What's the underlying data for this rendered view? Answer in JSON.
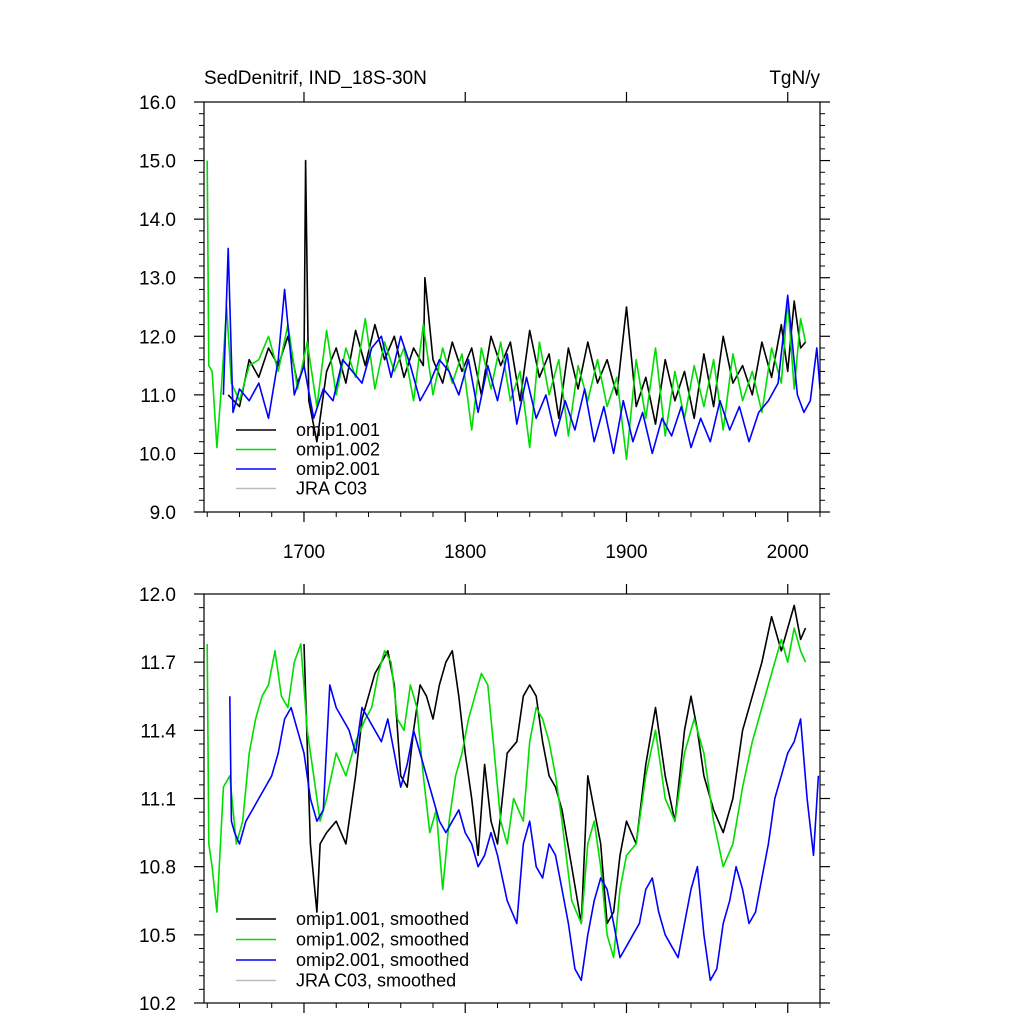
{
  "chart_data": [
    {
      "type": "line",
      "title": "SedDenitrif, IND_18S-30N",
      "units": "TgN/y",
      "xlabel": "",
      "ylabel": "",
      "xlim": [
        1638,
        2020
      ],
      "ylim": [
        9.0,
        16.0
      ],
      "xticks": [
        1700,
        1800,
        1900,
        2000
      ],
      "xtick_labels": [
        "1700",
        "1800",
        "1900",
        "2000"
      ],
      "yticks": [
        9.0,
        10.0,
        11.0,
        12.0,
        13.0,
        14.0,
        15.0,
        16.0
      ],
      "ytick_labels": [
        "9.0",
        "10.0",
        "11.0",
        "12.0",
        "13.0",
        "14.0",
        "15.0",
        "16.0"
      ],
      "legend_position": "bottom-left",
      "series": [
        {
          "name": "omip1.001",
          "color": "#000000",
          "x": [
            1653,
            1660,
            1666,
            1672,
            1678,
            1684,
            1690,
            1696,
            1700,
            1701,
            1703,
            1708,
            1714,
            1720,
            1726,
            1732,
            1738,
            1744,
            1750,
            1756,
            1762,
            1768,
            1774,
            1775,
            1780,
            1786,
            1792,
            1798,
            1804,
            1810,
            1816,
            1822,
            1828,
            1834,
            1840,
            1846,
            1852,
            1858,
            1864,
            1870,
            1876,
            1882,
            1888,
            1894,
            1900,
            1906,
            1912,
            1918,
            1924,
            1930,
            1936,
            1942,
            1948,
            1954,
            1960,
            1966,
            1972,
            1978,
            1984,
            1990,
            1996,
            2000,
            2004,
            2008,
            2011
          ],
          "values": [
            11.0,
            10.8,
            11.6,
            11.3,
            11.8,
            11.5,
            12.0,
            11.2,
            11.5,
            15.0,
            10.9,
            10.2,
            11.4,
            11.8,
            11.2,
            12.1,
            11.5,
            12.2,
            11.6,
            12.0,
            11.3,
            11.8,
            11.5,
            13.0,
            11.6,
            11.2,
            11.9,
            11.4,
            11.8,
            11.0,
            12.0,
            11.5,
            11.9,
            10.9,
            12.1,
            11.3,
            11.7,
            10.6,
            11.8,
            11.1,
            11.9,
            11.2,
            11.6,
            11.0,
            12.5,
            10.8,
            11.3,
            10.5,
            11.6,
            10.9,
            11.4,
            10.6,
            11.7,
            10.8,
            12.0,
            11.2,
            11.5,
            11.0,
            11.9,
            11.3,
            12.2,
            11.4,
            12.6,
            11.8,
            11.9
          ]
        },
        {
          "name": "omip1.002",
          "color": "#00dd00",
          "x": [
            1640,
            1641,
            1643,
            1646,
            1649,
            1652,
            1655,
            1660,
            1666,
            1672,
            1678,
            1684,
            1690,
            1696,
            1702,
            1708,
            1714,
            1720,
            1726,
            1732,
            1738,
            1744,
            1750,
            1756,
            1762,
            1768,
            1774,
            1780,
            1786,
            1792,
            1798,
            1804,
            1810,
            1816,
            1822,
            1828,
            1834,
            1840,
            1846,
            1852,
            1858,
            1864,
            1870,
            1876,
            1882,
            1888,
            1894,
            1900,
            1906,
            1912,
            1918,
            1924,
            1930,
            1936,
            1942,
            1948,
            1954,
            1960,
            1966,
            1972,
            1978,
            1984,
            1990,
            1996,
            2000,
            2004,
            2008,
            2011
          ],
          "values": [
            15.0,
            11.5,
            11.4,
            10.1,
            11.2,
            12.5,
            11.2,
            10.9,
            11.5,
            11.6,
            12.0,
            11.4,
            12.2,
            11.1,
            11.9,
            10.8,
            12.1,
            11.0,
            11.8,
            11.3,
            12.3,
            11.1,
            11.9,
            11.4,
            11.8,
            10.9,
            12.2,
            11.0,
            11.8,
            11.2,
            11.7,
            10.4,
            11.8,
            11.1,
            11.9,
            10.9,
            11.4,
            10.1,
            11.9,
            11.0,
            11.6,
            10.3,
            11.5,
            10.9,
            11.6,
            10.8,
            11.3,
            9.9,
            11.6,
            10.6,
            11.8,
            10.3,
            11.4,
            10.6,
            11.5,
            10.8,
            11.6,
            10.4,
            11.7,
            10.9,
            11.4,
            10.7,
            11.8,
            11.2,
            12.6,
            11.1,
            12.3,
            11.9
          ]
        },
        {
          "name": "omip2.001",
          "color": "#0000ff",
          "x": [
            1650,
            1653,
            1656,
            1660,
            1666,
            1672,
            1678,
            1684,
            1688,
            1694,
            1700,
            1706,
            1712,
            1718,
            1724,
            1730,
            1736,
            1742,
            1748,
            1754,
            1760,
            1766,
            1772,
            1778,
            1784,
            1790,
            1796,
            1802,
            1808,
            1814,
            1820,
            1826,
            1832,
            1838,
            1844,
            1850,
            1856,
            1862,
            1868,
            1874,
            1880,
            1886,
            1892,
            1898,
            1904,
            1910,
            1916,
            1922,
            1928,
            1934,
            1940,
            1946,
            1952,
            1958,
            1964,
            1970,
            1976,
            1982,
            1988,
            1994,
            2000,
            2006,
            2010,
            2014,
            2018,
            2020
          ],
          "values": [
            11.0,
            13.5,
            10.7,
            11.1,
            10.9,
            11.2,
            10.6,
            11.6,
            12.8,
            11.0,
            11.5,
            10.6,
            11.1,
            10.9,
            11.6,
            11.4,
            11.2,
            11.8,
            12.0,
            11.3,
            12.0,
            11.5,
            10.9,
            11.2,
            11.6,
            11.4,
            11.0,
            11.6,
            10.7,
            11.5,
            10.9,
            11.7,
            10.5,
            11.3,
            10.6,
            11.0,
            10.3,
            10.9,
            10.4,
            11.1,
            10.2,
            10.8,
            10.0,
            10.9,
            10.2,
            10.7,
            10.0,
            10.6,
            10.3,
            10.8,
            10.1,
            10.6,
            10.2,
            10.9,
            10.4,
            10.8,
            10.2,
            10.7,
            10.9,
            11.2,
            12.7,
            11.0,
            10.7,
            10.9,
            11.8,
            11.1
          ]
        },
        {
          "name": "JRA C03",
          "color": "#bbbbbb",
          "x": [],
          "values": []
        }
      ]
    },
    {
      "type": "line",
      "title": "",
      "xlabel": "",
      "ylabel": "",
      "xlim": [
        1638,
        2020
      ],
      "ylim": [
        10.2,
        12.0
      ],
      "xticks": [
        1700,
        1800,
        1900,
        2000
      ],
      "yticks": [
        10.2,
        10.5,
        10.8,
        11.1,
        11.4,
        11.7,
        12.0
      ],
      "ytick_labels": [
        "10.2",
        "10.5",
        "10.8",
        "11.1",
        "11.4",
        "11.7",
        "12.0"
      ],
      "legend_position": "bottom-left",
      "series": [
        {
          "name": "omip1.001, smoothed",
          "color": "#000000",
          "x": [
            1700,
            1704,
            1708,
            1710,
            1714,
            1720,
            1726,
            1732,
            1736,
            1740,
            1744,
            1748,
            1752,
            1756,
            1760,
            1764,
            1768,
            1772,
            1776,
            1780,
            1784,
            1788,
            1792,
            1796,
            1800,
            1804,
            1808,
            1812,
            1816,
            1820,
            1826,
            1832,
            1836,
            1840,
            1844,
            1848,
            1852,
            1856,
            1860,
            1866,
            1872,
            1876,
            1880,
            1884,
            1888,
            1892,
            1896,
            1900,
            1906,
            1912,
            1918,
            1924,
            1930,
            1936,
            1940,
            1944,
            1948,
            1954,
            1960,
            1966,
            1972,
            1978,
            1984,
            1990,
            1996,
            2000,
            2004,
            2008,
            2011
          ],
          "values": [
            11.78,
            10.9,
            10.6,
            10.9,
            10.95,
            11.0,
            10.9,
            11.2,
            11.45,
            11.55,
            11.65,
            11.7,
            11.75,
            11.6,
            11.2,
            11.15,
            11.4,
            11.6,
            11.55,
            11.45,
            11.6,
            11.7,
            11.75,
            11.55,
            11.3,
            11.1,
            10.85,
            11.25,
            11.0,
            10.9,
            11.3,
            11.35,
            11.55,
            11.6,
            11.55,
            11.35,
            11.2,
            11.15,
            11.05,
            10.8,
            10.55,
            11.2,
            11.05,
            10.9,
            10.55,
            10.6,
            10.85,
            11.0,
            10.9,
            11.25,
            11.5,
            11.2,
            11.0,
            11.4,
            11.55,
            11.4,
            11.2,
            11.05,
            10.95,
            11.1,
            11.4,
            11.55,
            11.7,
            11.9,
            11.75,
            11.85,
            11.95,
            11.8,
            11.85
          ]
        },
        {
          "name": "omip1.002, smoothed",
          "color": "#00dd00",
          "x": [
            1640,
            1641,
            1643,
            1646,
            1650,
            1654,
            1658,
            1662,
            1666,
            1670,
            1674,
            1678,
            1682,
            1686,
            1690,
            1694,
            1698,
            1702,
            1706,
            1710,
            1714,
            1720,
            1726,
            1732,
            1738,
            1742,
            1746,
            1750,
            1754,
            1758,
            1762,
            1766,
            1770,
            1774,
            1778,
            1782,
            1786,
            1790,
            1794,
            1798,
            1802,
            1806,
            1810,
            1814,
            1818,
            1822,
            1826,
            1830,
            1836,
            1840,
            1844,
            1848,
            1852,
            1856,
            1860,
            1866,
            1872,
            1876,
            1880,
            1884,
            1888,
            1892,
            1896,
            1900,
            1906,
            1912,
            1918,
            1924,
            1930,
            1936,
            1942,
            1948,
            1954,
            1960,
            1966,
            1972,
            1978,
            1984,
            1990,
            1996,
            2000,
            2004,
            2008,
            2011
          ],
          "values": [
            11.78,
            10.9,
            10.8,
            10.6,
            11.15,
            11.2,
            10.9,
            11.0,
            11.3,
            11.45,
            11.55,
            11.6,
            11.75,
            11.55,
            11.5,
            11.7,
            11.78,
            11.4,
            11.2,
            11.0,
            11.1,
            11.3,
            11.2,
            11.35,
            11.45,
            11.5,
            11.65,
            11.75,
            11.7,
            11.45,
            11.4,
            11.6,
            11.5,
            11.2,
            10.95,
            11.05,
            10.7,
            11.0,
            11.2,
            11.3,
            11.45,
            11.55,
            11.65,
            11.6,
            11.3,
            11.0,
            10.9,
            11.1,
            11.0,
            11.35,
            11.5,
            11.45,
            11.35,
            11.2,
            11.0,
            10.65,
            10.55,
            10.9,
            11.0,
            10.8,
            10.5,
            10.4,
            10.7,
            10.85,
            10.9,
            11.2,
            11.4,
            11.1,
            11.0,
            11.3,
            11.45,
            11.3,
            11.0,
            10.8,
            10.9,
            11.15,
            11.35,
            11.5,
            11.65,
            11.8,
            11.7,
            11.85,
            11.75,
            11.7
          ]
        },
        {
          "name": "omip2.001, smoothed",
          "color": "#0000ff",
          "x": [
            1654,
            1655,
            1657,
            1660,
            1664,
            1668,
            1672,
            1676,
            1680,
            1684,
            1688,
            1692,
            1696,
            1700,
            1704,
            1708,
            1712,
            1716,
            1720,
            1724,
            1728,
            1732,
            1736,
            1740,
            1744,
            1748,
            1752,
            1756,
            1760,
            1764,
            1768,
            1772,
            1776,
            1780,
            1784,
            1788,
            1792,
            1796,
            1800,
            1804,
            1808,
            1812,
            1816,
            1820,
            1826,
            1832,
            1836,
            1840,
            1844,
            1848,
            1852,
            1856,
            1860,
            1864,
            1868,
            1872,
            1876,
            1880,
            1884,
            1888,
            1892,
            1896,
            1900,
            1904,
            1908,
            1912,
            1916,
            1920,
            1924,
            1928,
            1932,
            1936,
            1940,
            1944,
            1948,
            1952,
            1956,
            1960,
            1964,
            1968,
            1972,
            1976,
            1980,
            1984,
            1988,
            1992,
            1996,
            2000,
            2004,
            2008,
            2012,
            2016,
            2019
          ],
          "values": [
            11.55,
            11.0,
            10.95,
            10.9,
            11.0,
            11.05,
            11.1,
            11.15,
            11.2,
            11.3,
            11.45,
            11.5,
            11.4,
            11.3,
            11.1,
            11.0,
            11.05,
            11.6,
            11.5,
            11.45,
            11.4,
            11.3,
            11.5,
            11.45,
            11.4,
            11.35,
            11.45,
            11.3,
            11.15,
            11.25,
            11.4,
            11.3,
            11.2,
            11.1,
            11.0,
            10.95,
            11.0,
            11.05,
            10.95,
            10.9,
            10.8,
            10.85,
            10.95,
            10.85,
            10.65,
            10.55,
            10.9,
            11.0,
            10.8,
            10.75,
            10.9,
            10.85,
            10.7,
            10.55,
            10.35,
            10.3,
            10.5,
            10.65,
            10.75,
            10.7,
            10.55,
            10.4,
            10.45,
            10.5,
            10.55,
            10.7,
            10.75,
            10.6,
            10.5,
            10.45,
            10.4,
            10.55,
            10.7,
            10.8,
            10.5,
            10.3,
            10.35,
            10.55,
            10.65,
            10.8,
            10.7,
            10.55,
            10.6,
            10.75,
            10.9,
            11.1,
            11.2,
            11.3,
            11.35,
            11.45,
            11.1,
            10.85,
            11.2
          ]
        },
        {
          "name": "JRA C03, smoothed",
          "color": "#bbbbbb",
          "x": [],
          "values": []
        }
      ]
    }
  ]
}
